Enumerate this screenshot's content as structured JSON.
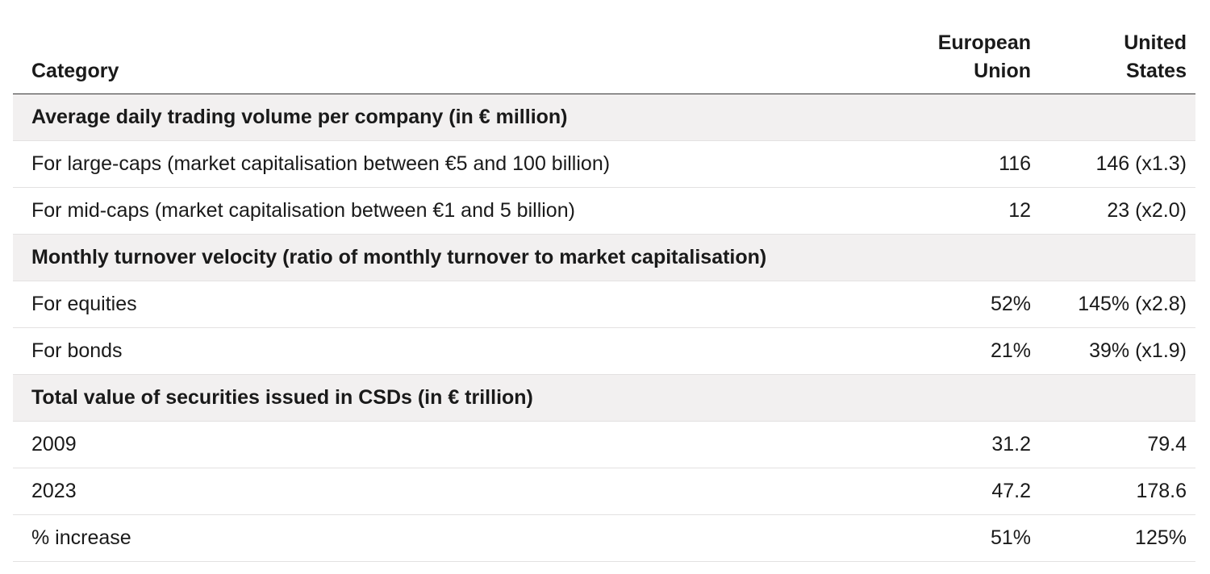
{
  "table": {
    "headers": {
      "category": "Category",
      "eu_line1": "European",
      "eu_line2": "Union",
      "us_line1": "United",
      "us_line2": "States"
    },
    "sections": [
      {
        "title": "Average daily trading volume per company (in € million)",
        "rows": [
          {
            "label": "For large-caps (market capitalisation between €5 and 100 billion)",
            "eu": "116",
            "us": "146 (x1.3)"
          },
          {
            "label": "For mid-caps (market capitalisation between €1 and 5 billion)",
            "eu": "12",
            "us": "23 (x2.0)"
          }
        ]
      },
      {
        "title": "Monthly turnover velocity (ratio of monthly turnover to market capitalisation)",
        "rows": [
          {
            "label": "For equities",
            "eu": "52%",
            "us": "145% (x2.8)"
          },
          {
            "label": "For bonds",
            "eu": "21%",
            "us": "39% (x1.9)"
          }
        ]
      },
      {
        "title": "Total value of securities issued in CSDs (in € trillion)",
        "rows": [
          {
            "label": "2009",
            "eu": "31.2",
            "us": "79.4"
          },
          {
            "label": "2023",
            "eu": "47.2",
            "us": "178.6"
          },
          {
            "label": "% increase",
            "eu": "51%",
            "us": "125%"
          }
        ]
      }
    ]
  }
}
